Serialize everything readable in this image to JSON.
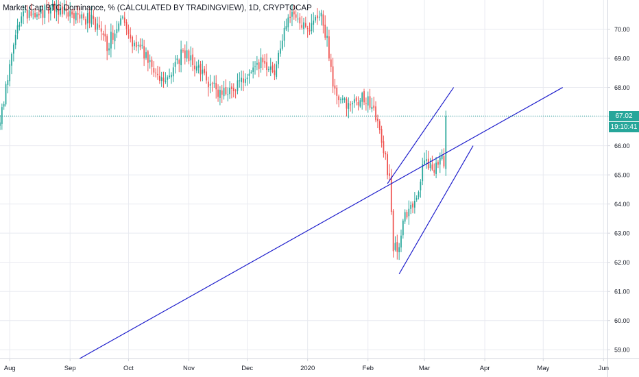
{
  "header": {
    "title": "Market Cap BTC Dominance, % (CALCULATED BY TRADINGVIEW), 1D, CRYPTOCAP"
  },
  "price_axis": {
    "labels": [
      "70.00",
      "69.00",
      "68.00",
      "67.00",
      "66.00",
      "65.00",
      "64.00",
      "63.00",
      "62.00",
      "61.00",
      "60.00",
      "59.00"
    ],
    "last_price_tag": "67.02",
    "countdown_tag": "19:10:41"
  },
  "time_axis": {
    "labels": [
      "Aug",
      "Sep",
      "Oct",
      "Nov",
      "Dec",
      "2020",
      "Feb",
      "Mar",
      "Apr",
      "May",
      "Jun"
    ]
  },
  "colors": {
    "up": "#26a69a",
    "down": "#ef5350",
    "trendline": "#1f1fcc",
    "last_price": "#26a69a",
    "grid": "#e8eaf0",
    "axis_border": "#d1d4dc"
  },
  "chart_data": {
    "type": "candlestick",
    "title": "Market Cap BTC Dominance, % (CALCULATED BY TRADINGVIEW), 1D, CRYPTOCAP",
    "y_unit": "%",
    "ylim": [
      58.7,
      71.0
    ],
    "xlim": [
      "2019-07-27",
      "2020-06-03"
    ],
    "x_ticks": [
      "2019-08-01",
      "2019-09-01",
      "2019-10-01",
      "2019-11-01",
      "2019-12-01",
      "2020-01-01",
      "2020-02-01",
      "2020-03-01",
      "2020-04-01",
      "2020-05-01",
      "2020-06-01"
    ],
    "y_ticks": [
      59,
      60,
      61,
      62,
      63,
      64,
      65,
      66,
      67,
      68,
      69,
      70
    ],
    "last_price": 67.02,
    "grid": true,
    "close_path": [
      [
        "2019-07-27",
        66.8
      ],
      [
        "2019-08-01",
        68.8
      ],
      [
        "2019-08-05",
        70.3
      ],
      [
        "2019-08-10",
        70.5
      ],
      [
        "2019-08-18",
        70.6
      ],
      [
        "2019-08-25",
        70.7
      ],
      [
        "2019-09-02",
        70.6
      ],
      [
        "2019-09-08",
        70.4
      ],
      [
        "2019-09-14",
        70.2
      ],
      [
        "2019-09-20",
        69.4
      ],
      [
        "2019-09-24",
        70.0
      ],
      [
        "2019-09-28",
        70.3
      ],
      [
        "2019-10-03",
        69.6
      ],
      [
        "2019-10-09",
        69.2
      ],
      [
        "2019-10-15",
        68.5
      ],
      [
        "2019-10-20",
        68.3
      ],
      [
        "2019-10-26",
        68.9
      ],
      [
        "2019-10-29",
        69.3
      ],
      [
        "2019-11-03",
        68.9
      ],
      [
        "2019-11-09",
        68.3
      ],
      [
        "2019-11-15",
        67.9
      ],
      [
        "2019-11-21",
        67.8
      ],
      [
        "2019-11-26",
        68.1
      ],
      [
        "2019-12-02",
        68.6
      ],
      [
        "2019-12-09",
        68.9
      ],
      [
        "2019-12-15",
        68.4
      ],
      [
        "2019-12-19",
        69.8
      ],
      [
        "2019-12-22",
        70.5
      ],
      [
        "2019-12-29",
        70.1
      ],
      [
        "2020-01-03",
        70.0
      ],
      [
        "2020-01-07",
        70.6
      ],
      [
        "2020-01-11",
        69.6
      ],
      [
        "2020-01-14",
        68.2
      ],
      [
        "2020-01-18",
        67.4
      ],
      [
        "2020-01-24",
        67.5
      ],
      [
        "2020-01-30",
        67.7
      ],
      [
        "2020-02-03",
        67.4
      ],
      [
        "2020-02-07",
        66.4
      ],
      [
        "2020-02-10",
        65.6
      ],
      [
        "2020-02-12",
        64.8
      ],
      [
        "2020-02-14",
        62.6
      ],
      [
        "2020-02-16",
        62.4
      ],
      [
        "2020-02-20",
        63.5
      ],
      [
        "2020-02-23",
        63.9
      ],
      [
        "2020-02-26",
        64.3
      ],
      [
        "2020-02-29",
        65.2
      ],
      [
        "2020-03-03",
        65.4
      ],
      [
        "2020-03-06",
        65.2
      ],
      [
        "2020-03-09",
        65.6
      ],
      [
        "2020-03-11",
        65.4
      ],
      [
        "2020-03-12",
        67.02
      ]
    ],
    "trendlines": [
      {
        "from": [
          "2019-08-29",
          58.4
        ],
        "to": [
          "2020-05-11",
          68.0
        ]
      },
      {
        "from": [
          "2020-02-11",
          64.7
        ],
        "to": [
          "2020-03-16",
          68.0
        ]
      },
      {
        "from": [
          "2020-02-17",
          61.6
        ],
        "to": [
          "2020-03-26",
          66.0
        ]
      }
    ]
  }
}
